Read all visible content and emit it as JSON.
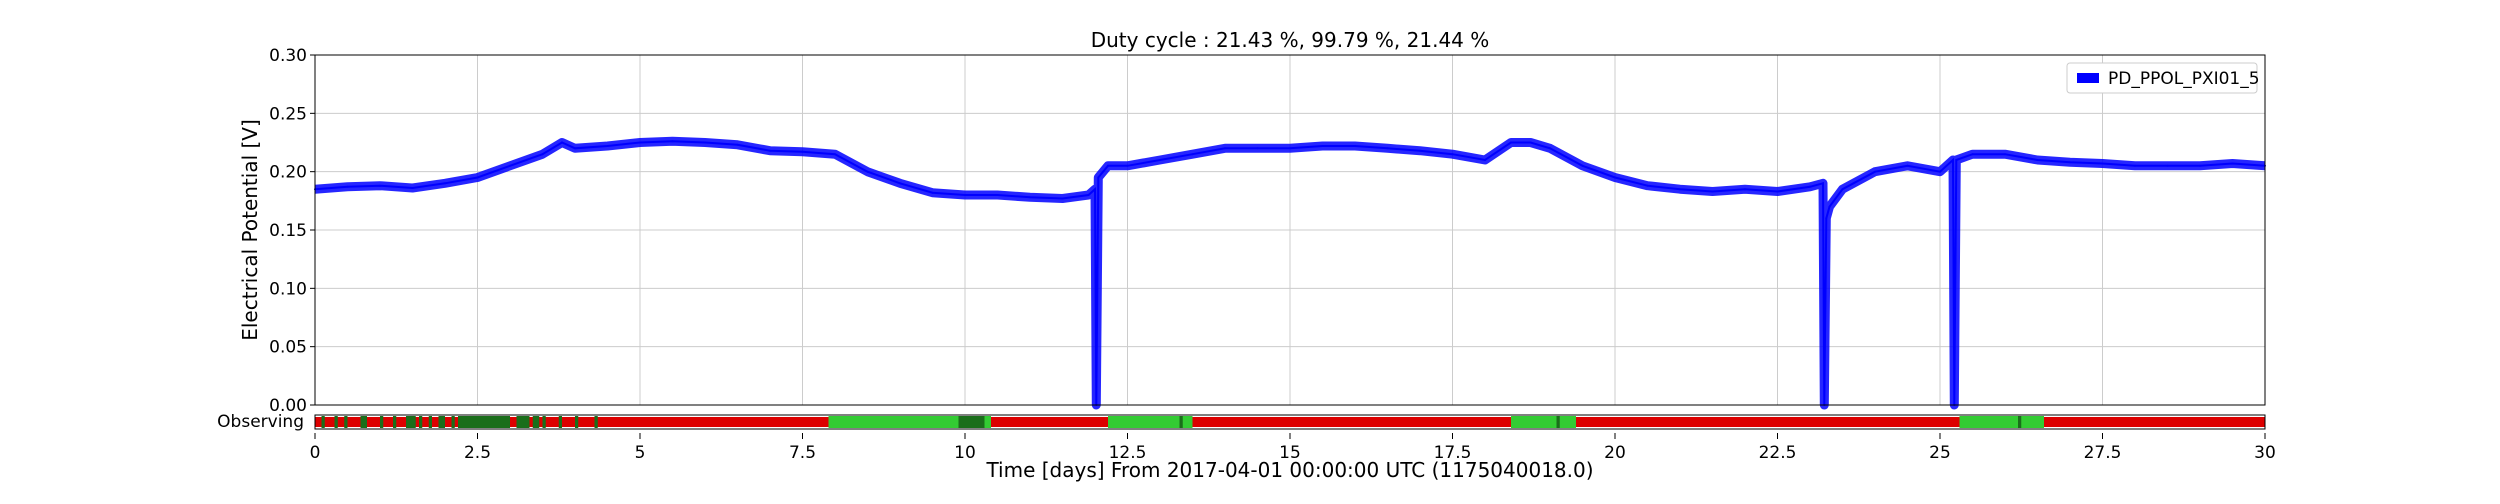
{
  "chart_data": {
    "type": "line",
    "title": "Duty cycle : 21.43 %, 99.79 %, 21.44 %",
    "xlabel": "Time [days] From 2017-04-01 00:00:00 UTC (1175040018.0)",
    "ylabel": "Electrical Potential [V]",
    "xlim": [
      0,
      30
    ],
    "ylim": [
      0,
      0.3
    ],
    "grid": true,
    "legend_position": "top-right",
    "x_ticks": [
      "0",
      "2.5",
      "5",
      "7.5",
      "10",
      "12.5",
      "15",
      "17.5",
      "20",
      "22.5",
      "25",
      "27.5",
      "30"
    ],
    "y_ticks": [
      "0.00",
      "0.05",
      "0.10",
      "0.15",
      "0.20",
      "0.25",
      "0.30"
    ],
    "series": [
      {
        "name": "PD_PPOL_PXI01_5",
        "color": "#0000ff",
        "x": [
          0,
          0.5,
          1,
          1.5,
          2,
          2.5,
          3,
          3.5,
          3.8,
          4,
          4.5,
          5,
          5.5,
          6,
          6.5,
          7,
          7.5,
          8,
          8.5,
          9,
          9.5,
          10,
          10.5,
          11,
          11.5,
          11.9,
          12.0,
          12.02,
          12.05,
          12.2,
          12.5,
          13,
          13.5,
          14,
          14.5,
          15,
          15.5,
          16,
          16.5,
          17,
          17.5,
          18,
          18.4,
          18.7,
          19,
          19.5,
          20,
          20.5,
          21,
          21.5,
          22,
          22.5,
          23,
          23.2,
          23.22,
          23.25,
          23.3,
          23.5,
          24,
          24.5,
          25,
          25.2,
          25.22,
          25.25,
          25.5,
          26,
          26.5,
          27,
          27.5,
          28,
          28.5,
          29,
          29.5,
          30
        ],
        "values": [
          0.185,
          0.187,
          0.188,
          0.186,
          0.19,
          0.195,
          0.205,
          0.215,
          0.225,
          0.22,
          0.222,
          0.225,
          0.226,
          0.225,
          0.223,
          0.218,
          0.217,
          0.215,
          0.2,
          0.19,
          0.182,
          0.18,
          0.18,
          0.178,
          0.177,
          0.18,
          0.185,
          0.0,
          0.195,
          0.205,
          0.205,
          0.21,
          0.215,
          0.22,
          0.22,
          0.22,
          0.222,
          0.222,
          0.22,
          0.218,
          0.215,
          0.21,
          0.225,
          0.225,
          0.22,
          0.205,
          0.195,
          0.188,
          0.185,
          0.183,
          0.185,
          0.183,
          0.187,
          0.19,
          0.0,
          0.16,
          0.17,
          0.185,
          0.2,
          0.205,
          0.2,
          0.21,
          0.0,
          0.21,
          0.215,
          0.215,
          0.21,
          0.208,
          0.207,
          0.205,
          0.205,
          0.205,
          0.207,
          0.205
        ]
      }
    ],
    "segments": {
      "label": "Observing",
      "background_color": "#dd0000",
      "flag_color": "#33cc33",
      "active_color": "#1a6e1a",
      "intervals": [
        [
          0.1,
          0.15,
          "active"
        ],
        [
          0.3,
          0.35,
          "active"
        ],
        [
          0.45,
          0.5,
          "active"
        ],
        [
          0.7,
          0.8,
          "active"
        ],
        [
          1.0,
          1.05,
          "active"
        ],
        [
          1.2,
          1.25,
          "active"
        ],
        [
          1.4,
          1.55,
          "active"
        ],
        [
          1.6,
          1.65,
          "active"
        ],
        [
          1.75,
          1.8,
          "active"
        ],
        [
          1.9,
          2.0,
          "active"
        ],
        [
          2.1,
          2.15,
          "active"
        ],
        [
          2.2,
          3.0,
          "active"
        ],
        [
          3.1,
          3.3,
          "active"
        ],
        [
          3.35,
          3.45,
          "active"
        ],
        [
          3.5,
          3.55,
          "active"
        ],
        [
          3.75,
          3.8,
          "active"
        ],
        [
          4.0,
          4.05,
          "active"
        ],
        [
          4.3,
          4.35,
          "active"
        ],
        [
          7.9,
          10.4,
          "flag"
        ],
        [
          9.9,
          10.3,
          "active"
        ],
        [
          12.2,
          13.5,
          "flag"
        ],
        [
          13.3,
          13.35,
          "active"
        ],
        [
          18.4,
          19.4,
          "flag"
        ],
        [
          19.1,
          19.15,
          "active"
        ],
        [
          25.3,
          26.6,
          "flag"
        ],
        [
          26.2,
          26.25,
          "active"
        ]
      ]
    }
  }
}
